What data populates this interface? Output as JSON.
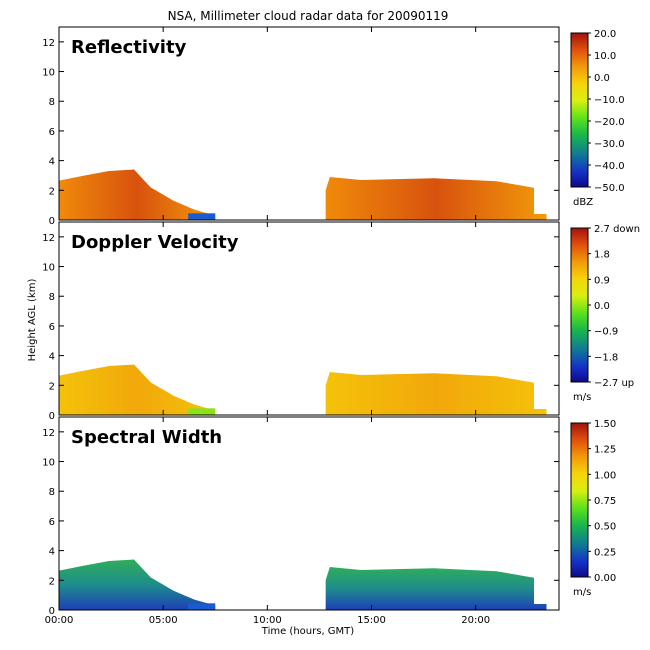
{
  "chart_data": {
    "type": "heatmap",
    "title": "NSA, Millimeter cloud radar data for 20090119",
    "xlabel": "Time (hours, GMT)",
    "ylabel": "Height AGL (km)",
    "xlim": [
      0,
      24
    ],
    "ylim": [
      0,
      13
    ],
    "x_ticks": [
      "00:00",
      "05:00",
      "10:00",
      "15:00",
      "20:00"
    ],
    "y_ticks": [
      "0",
      "2",
      "4",
      "6",
      "8",
      "10",
      "12"
    ],
    "cloud_layers": [
      {
        "start_hour": 0.0,
        "end_hour": 3.6,
        "top_km": 3.4
      },
      {
        "start_hour": 3.6,
        "end_hour": 7.5,
        "top_km": 0.5
      },
      {
        "start_hour": 12.8,
        "end_hour": 22.8,
        "top_km": 2.9
      }
    ],
    "panels": [
      {
        "label": "Reflectivity",
        "colorbar_ticks": [
          "20.0",
          "10.0",
          "0.0",
          "−10.0",
          "−20.0",
          "−30.0",
          "−40.0",
          "−50.0"
        ],
        "unit": "dBZ",
        "range": [
          -50,
          20
        ]
      },
      {
        "label": "Doppler Velocity",
        "colorbar_ticks": [
          "2.7 down",
          "1.8",
          "0.9",
          "0.0",
          "−0.9",
          "−1.8",
          "−2.7 up"
        ],
        "unit": "m/s",
        "range": [
          -2.7,
          2.7
        ]
      },
      {
        "label": "Spectral Width",
        "colorbar_ticks": [
          "1.50",
          "1.25",
          "1.00",
          "0.75",
          "0.50",
          "0.25",
          "0.00"
        ],
        "unit": "m/s",
        "range": [
          0,
          1.5
        ]
      }
    ]
  }
}
